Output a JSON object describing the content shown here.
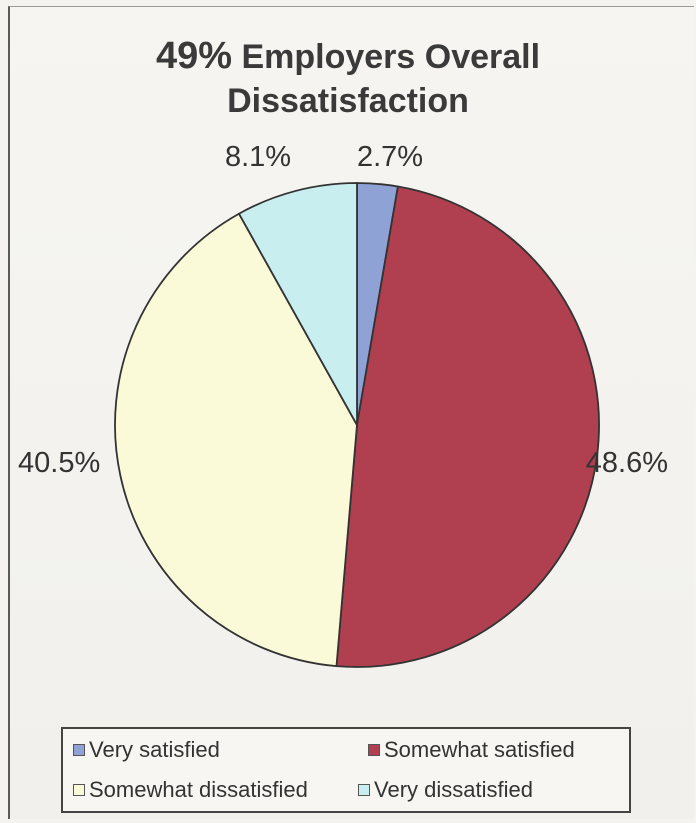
{
  "title": {
    "percent": "49%",
    "line1_rest": " Employers Overall",
    "line2": "Dissatisfaction"
  },
  "chart_data": {
    "type": "pie",
    "title": "49% Employers Overall Dissatisfaction",
    "slices": [
      {
        "label": "Very satisfied",
        "value": 2.7,
        "display": "2.7%",
        "color": "#8ea2d6"
      },
      {
        "label": "Somewhat satisfied",
        "value": 48.6,
        "display": "48.6%",
        "color": "#b0404f"
      },
      {
        "label": "Somewhat dissatisfied",
        "value": 40.5,
        "display": "40.5%",
        "color": "#fbfad8"
      },
      {
        "label": "Very dissatisfied",
        "value": 8.1,
        "display": "8.1%",
        "color": "#c9eef0"
      }
    ],
    "start_angle_deg": 0,
    "direction": "clockwise",
    "legend_position": "bottom"
  },
  "legend": {
    "items": [
      {
        "label": "Very satisfied",
        "color": "#8ea2d6"
      },
      {
        "label": "Somewhat satisfied",
        "color": "#b0404f"
      },
      {
        "label": "Somewhat dissatisfied",
        "color": "#fbfad8"
      },
      {
        "label": "Very dissatisfied",
        "color": "#c9eef0"
      }
    ]
  }
}
